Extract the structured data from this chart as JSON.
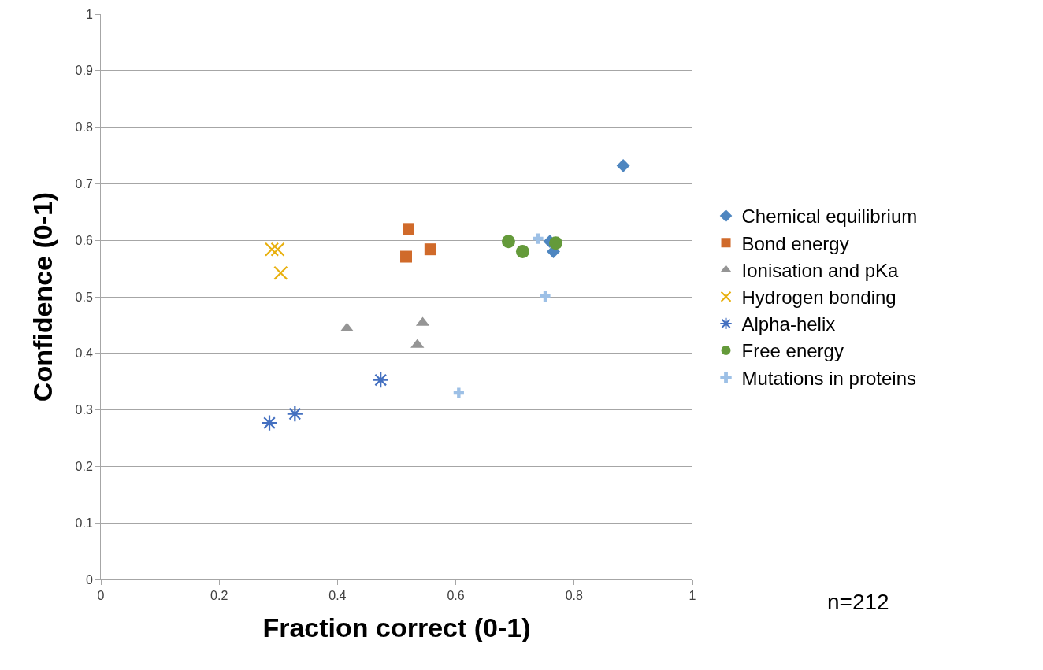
{
  "chart_data": {
    "type": "scatter",
    "xlabel": "Fraction correct (0-1)",
    "ylabel": "Confidence (0-1)",
    "xlim": [
      0,
      1
    ],
    "xticks": [
      0,
      0.2,
      0.4,
      0.6,
      0.8,
      1
    ],
    "ylim": [
      0,
      1
    ],
    "yticks": [
      0,
      0.1,
      0.2,
      0.3,
      0.4,
      0.5,
      0.6,
      0.7,
      0.8,
      0.9,
      1
    ],
    "grid": "y",
    "legend": "right",
    "annotations": [
      "n=212"
    ],
    "series": [
      {
        "name": "Chemical equilibrium",
        "color": "#4e86c0",
        "marker": "diamond",
        "x": [
          0.883,
          0.759,
          0.765
        ],
        "values": [
          0.732,
          0.598,
          0.58
        ]
      },
      {
        "name": "Bond energy",
        "color": "#d06a2a",
        "marker": "square",
        "x": [
          0.52,
          0.516,
          0.557
        ],
        "values": [
          0.62,
          0.571,
          0.584
        ]
      },
      {
        "name": "Ionisation and pKa",
        "color": "#959595",
        "marker": "triangle",
        "x": [
          0.416,
          0.544,
          0.535
        ],
        "values": [
          0.444,
          0.454,
          0.415
        ]
      },
      {
        "name": "Hydrogen bonding",
        "color": "#e8b00e",
        "marker": "x",
        "x": [
          0.289,
          0.299,
          0.304
        ],
        "values": [
          0.584,
          0.584,
          0.542
        ]
      },
      {
        "name": "Alpha-helix",
        "color": "#4470c0",
        "x": [
          0.285,
          0.328,
          0.473
        ],
        "values": [
          0.277,
          0.293,
          0.353
        ]
      },
      {
        "name": "Free energy",
        "color": "#649a3a",
        "marker": "circle",
        "x": [
          0.689,
          0.713,
          0.769
        ],
        "values": [
          0.598,
          0.58,
          0.595
        ]
      },
      {
        "name": "Mutations in proteins",
        "color": "#9dc0e6",
        "marker": "cross",
        "x": [
          0.739,
          0.751,
          0.605
        ],
        "values": [
          0.603,
          0.501,
          0.33
        ]
      }
    ]
  }
}
